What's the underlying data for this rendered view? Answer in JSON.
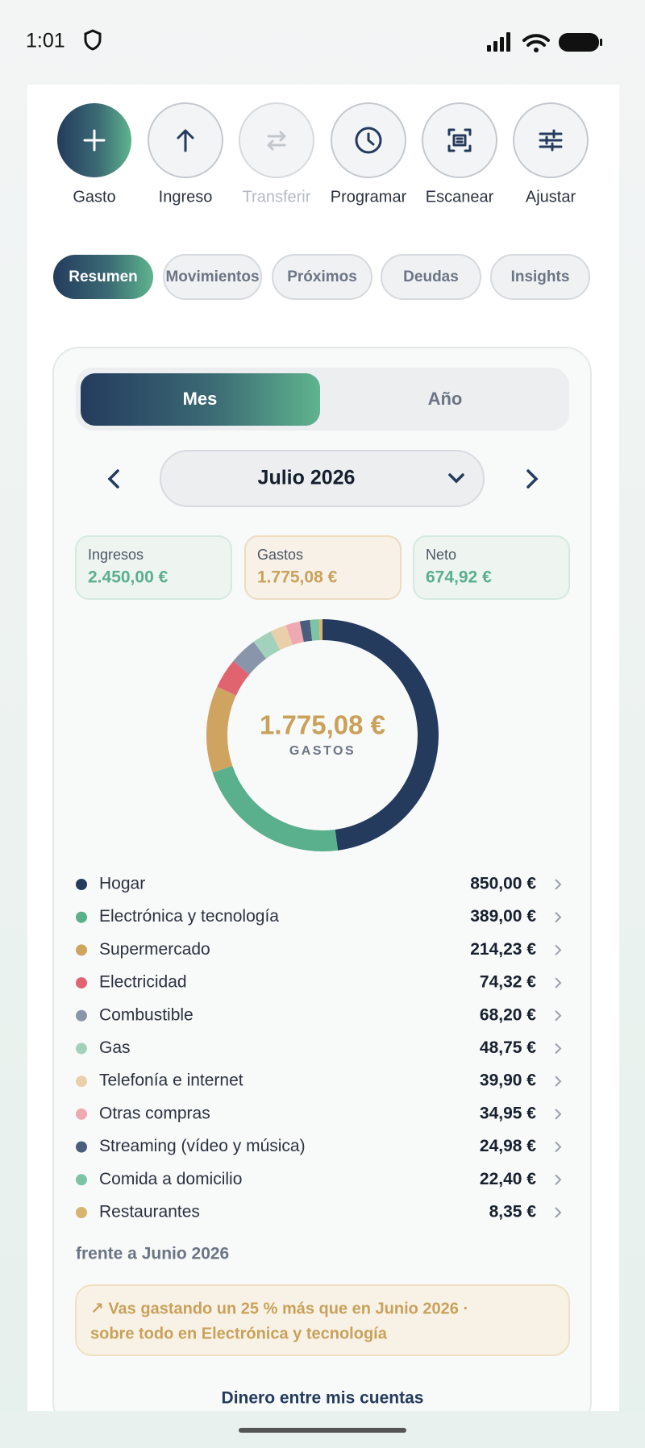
{
  "status_bar": {
    "time": "1:01"
  },
  "actions": [
    "Gasto",
    "Ingreso",
    "Transferir",
    "Programar",
    "Escanear",
    "Ajustar"
  ],
  "tabs": [
    "Resumen",
    "Movimientos",
    "Próximos",
    "Deudas",
    "Insights"
  ],
  "period_toggle": [
    "Mes",
    "Año"
  ],
  "period": "Julio 2026",
  "summary": [
    {
      "label": "Ingresos",
      "value": "2.450,00 €"
    },
    {
      "label": "Gastos",
      "value": "1.775,08 €"
    },
    {
      "label": "Neto",
      "value": "674,92 €"
    }
  ],
  "chart_data": {
    "type": "pie",
    "center_value": "1.775,08 €",
    "center_label": "GASTOS",
    "categories": [
      "Hogar",
      "Electrónica y tecnología",
      "Supermercado",
      "Electricidad",
      "Combustible",
      "Gas",
      "Telefonía e internet",
      "Otras compras",
      "Streaming (vídeo y música)",
      "Comida a domicilio",
      "Restaurantes"
    ],
    "values": [
      850,
      389,
      214.23,
      74.32,
      68.2,
      48.75,
      39.9,
      34.95,
      24.98,
      22.4,
      8.35
    ],
    "value_labels": [
      "850,00 €",
      "389,00 €",
      "214,23 €",
      "74,32 €",
      "68,20 €",
      "48,75 €",
      "39,90 €",
      "34,95 €",
      "24,98 €",
      "22,40 €",
      "8,35 €"
    ],
    "colors": [
      "#243b5e",
      "#5aaf8c",
      "#cfa460",
      "#e06470",
      "#8895aa",
      "#a3d2bc",
      "#e9d0aa",
      "#eeaab0",
      "#4a5d7e",
      "#7cc4a4",
      "#d9b470"
    ]
  },
  "comparison": "frente a Junio 2026",
  "insight": [
    "↗ Vas gastando un 25 % más que en Junio 2026 ·",
    "sobre todo en Electrónica y tecnología"
  ],
  "footer_link": "Dinero entre mis cuentas"
}
